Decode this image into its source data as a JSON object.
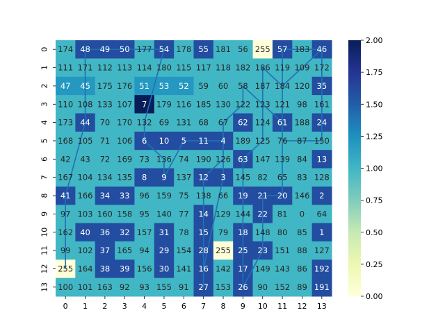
{
  "chart_data": {
    "type": "heatmap",
    "x": [
      "0",
      "1",
      "2",
      "3",
      "4",
      "5",
      "6",
      "7",
      "8",
      "9",
      "10",
      "11",
      "12",
      "13"
    ],
    "y": [
      "0",
      "1",
      "2",
      "3",
      "4",
      "5",
      "6",
      "7",
      "8",
      "9",
      "10",
      "11",
      "12",
      "13"
    ],
    "labels": [
      [
        174,
        48,
        49,
        50,
        177,
        54,
        178,
        55,
        181,
        56,
        255,
        57,
        183,
        46
      ],
      [
        111,
        171,
        112,
        113,
        114,
        180,
        115,
        117,
        118,
        182,
        186,
        119,
        109,
        172
      ],
      [
        47,
        45,
        175,
        176,
        51,
        53,
        52,
        59,
        60,
        58,
        187,
        184,
        120,
        35
      ],
      [
        110,
        108,
        133,
        107,
        7,
        179,
        116,
        185,
        130,
        122,
        123,
        121,
        98,
        161
      ],
      [
        173,
        44,
        70,
        170,
        132,
        69,
        131,
        68,
        67,
        62,
        124,
        61,
        188,
        24
      ],
      [
        168,
        105,
        71,
        106,
        6,
        10,
        5,
        11,
        4,
        189,
        125,
        76,
        87,
        150
      ],
      [
        42,
        43,
        72,
        169,
        73,
        136,
        74,
        190,
        126,
        63,
        147,
        139,
        84,
        13
      ],
      [
        167,
        104,
        134,
        135,
        8,
        9,
        137,
        12,
        3,
        145,
        82,
        65,
        83,
        128
      ],
      [
        41,
        166,
        34,
        33,
        96,
        159,
        75,
        138,
        66,
        19,
        21,
        20,
        146,
        2
      ],
      [
        97,
        103,
        160,
        158,
        95,
        140,
        77,
        14,
        129,
        144,
        22,
        81,
        0,
        64
      ],
      [
        162,
        40,
        36,
        32,
        157,
        31,
        78,
        15,
        79,
        18,
        148,
        80,
        85,
        1
      ],
      [
        99,
        102,
        37,
        165,
        94,
        29,
        154,
        28,
        255,
        25,
        23,
        151,
        88,
        127
      ],
      [
        255,
        164,
        38,
        39,
        156,
        30,
        141,
        16,
        142,
        17,
        149,
        143,
        86,
        192
      ],
      [
        100,
        101,
        163,
        92,
        93,
        155,
        91,
        27,
        153,
        26,
        90,
        152,
        89,
        191
      ]
    ],
    "values": [
      [
        1,
        1.6,
        1.6,
        1.6,
        1,
        1.6,
        1,
        1.6,
        1,
        1,
        0,
        1.6,
        1,
        1.6
      ],
      [
        1,
        1,
        1,
        1,
        1,
        1,
        1,
        1,
        1,
        1,
        1,
        1,
        1,
        1
      ],
      [
        1.2,
        1.2,
        1,
        1,
        1.2,
        1.2,
        1.2,
        1,
        1,
        1,
        1,
        1,
        1,
        1.6
      ],
      [
        1,
        1,
        1,
        1,
        2,
        1,
        1,
        1,
        1,
        1,
        1,
        1,
        1,
        1
      ],
      [
        1,
        1.6,
        1,
        1,
        1,
        1,
        1,
        1,
        1,
        1.6,
        1,
        1.6,
        1,
        1.6
      ],
      [
        1,
        1,
        1,
        1,
        1.6,
        1.6,
        1.6,
        1.6,
        1.6,
        1,
        1,
        1,
        1,
        1
      ],
      [
        1,
        1,
        1,
        1,
        1,
        1,
        1,
        1,
        1,
        1.6,
        1,
        1,
        1,
        1.6
      ],
      [
        1,
        1,
        1,
        1,
        1.6,
        1.6,
        1,
        1.6,
        1.6,
        1,
        1,
        1,
        1,
        1
      ],
      [
        1.6,
        1,
        1.6,
        1.6,
        1,
        1,
        1,
        1,
        1,
        1.6,
        1.6,
        1.6,
        1,
        1.6
      ],
      [
        1,
        1,
        1,
        1,
        1,
        1,
        1,
        1.6,
        1,
        1,
        1.6,
        1,
        1,
        1
      ],
      [
        1,
        1.6,
        1.6,
        1.6,
        1,
        1.6,
        1,
        1.6,
        1,
        1.6,
        1,
        1,
        1,
        1.6
      ],
      [
        1,
        1,
        1.6,
        1,
        1,
        1.6,
        1,
        1.6,
        0,
        1.6,
        1.6,
        1,
        1,
        1
      ],
      [
        0,
        1,
        1.6,
        1.6,
        1,
        1.6,
        1,
        1.6,
        1,
        1.6,
        1,
        1,
        1,
        1.6
      ],
      [
        1,
        1,
        1,
        1,
        1,
        1,
        1,
        1.6,
        1,
        1.6,
        1,
        1,
        1,
        1.6
      ]
    ],
    "colorbar": {
      "min": 0,
      "max": 2,
      "ticks": [
        "0.00",
        "0.25",
        "0.50",
        "0.75",
        "1.00",
        "1.25",
        "1.50",
        "1.75",
        "2.00"
      ],
      "colormap": [
        "#ffffd9",
        "#edf8b1",
        "#c7e9b4",
        "#7fcdbb",
        "#41b6c4",
        "#1d91c0",
        "#225ea8",
        "#253494",
        "#081d58"
      ]
    },
    "path_color": "#2171b5",
    "path": [
      [
        12,
        0
      ],
      [
        8,
        0
      ],
      [
        4,
        1
      ],
      [
        2,
        1
      ],
      [
        0,
        1
      ],
      [
        0,
        2
      ],
      [
        0,
        3
      ],
      [
        0,
        5
      ],
      [
        4,
        4
      ],
      [
        5,
        4
      ],
      [
        6,
        5
      ],
      [
        7,
        5
      ],
      [
        5,
        6
      ],
      [
        5,
        7
      ],
      [
        5,
        8
      ],
      [
        7,
        8
      ],
      [
        12,
        7
      ],
      [
        13,
        7
      ],
      [
        11,
        7
      ],
      [
        10,
        7
      ],
      [
        9,
        7
      ],
      [
        8,
        7
      ],
      [
        7,
        7
      ],
      [
        6,
        8
      ],
      [
        4,
        8
      ],
      [
        3,
        9
      ],
      [
        2,
        9
      ],
      [
        4,
        11
      ],
      [
        5,
        11
      ],
      [
        5,
        13
      ],
      [
        2,
        13
      ],
      [
        0,
        13
      ],
      [
        1,
        12
      ],
      [
        2,
        11
      ],
      [
        1,
        10
      ],
      [
        3,
        10
      ],
      [
        4,
        10
      ],
      [
        5,
        10
      ],
      [
        6,
        9
      ],
      [
        7,
        9
      ],
      [
        8,
        9
      ],
      [
        9,
        9
      ],
      [
        10,
        9
      ],
      [
        11,
        9
      ],
      [
        12,
        9
      ],
      [
        13,
        9
      ],
      [
        11,
        10
      ],
      [
        10,
        10
      ],
      [
        8,
        10
      ],
      [
        8,
        11
      ],
      [
        7,
        11
      ],
      [
        6,
        11
      ],
      [
        4,
        11
      ],
      [
        3,
        11
      ],
      [
        2,
        11
      ],
      [
        1,
        11
      ],
      [
        0,
        11
      ],
      [
        0,
        12
      ],
      [
        0,
        13
      ]
    ]
  }
}
